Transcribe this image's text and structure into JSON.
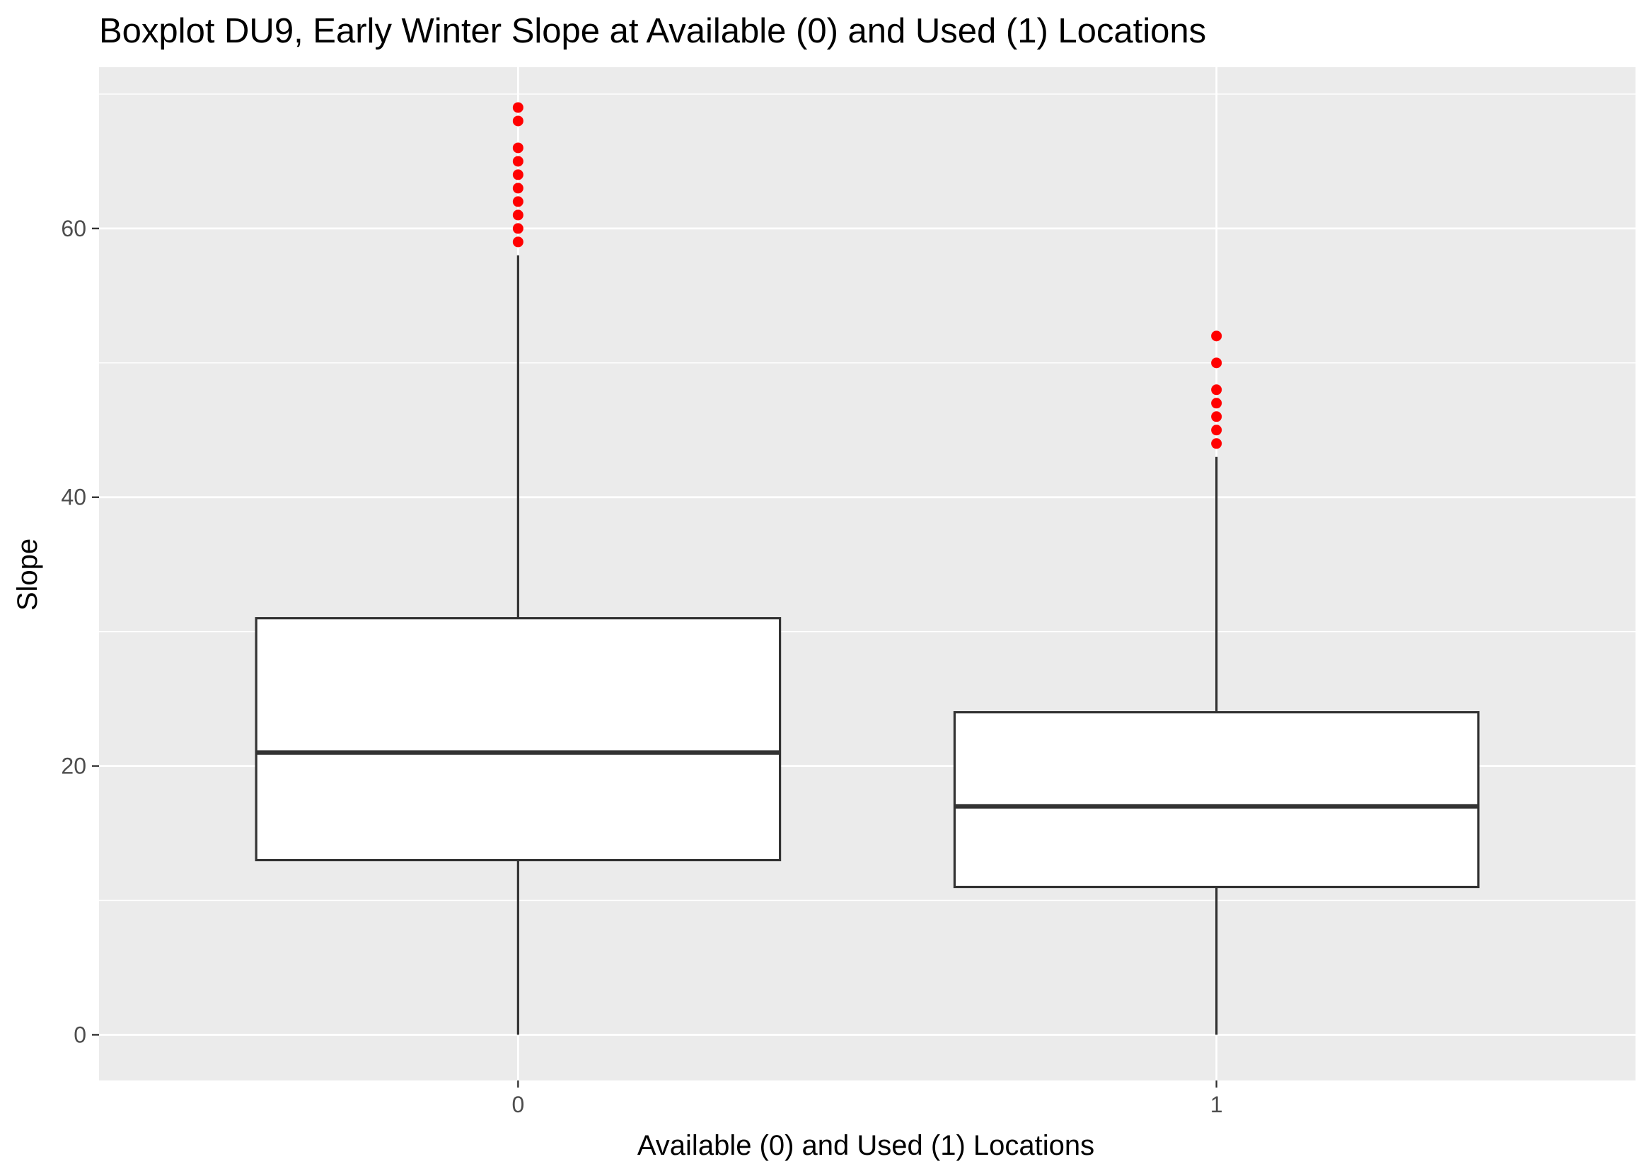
{
  "chart_data": {
    "type": "boxplot",
    "title": "Boxplot DU9, Early Winter Slope at Available (0) and Used (1) Locations",
    "xlabel": "Available (0) and Used (1) Locations",
    "ylabel": "Slope",
    "categories": [
      "0",
      "1"
    ],
    "ylim": [
      -3.4,
      72
    ],
    "y_ticks": [
      0,
      20,
      40,
      60
    ],
    "grid": true,
    "legend": "none",
    "boxes": [
      {
        "category": "0",
        "whisker_low": 0,
        "q1": 13,
        "median": 21,
        "q3": 31,
        "whisker_high": 58,
        "outliers": [
          59,
          60,
          61,
          62,
          63,
          64,
          65,
          66,
          68,
          69
        ]
      },
      {
        "category": "1",
        "whisker_low": 0,
        "q1": 11,
        "median": 17,
        "q3": 24,
        "whisker_high": 43,
        "outliers": [
          44,
          45,
          46,
          47,
          48,
          50,
          52
        ]
      }
    ],
    "colors": {
      "panel_background": "#ebebeb",
      "grid": "#ffffff",
      "box_fill": "#ffffff",
      "box_line": "#333333",
      "outlier": "#ff0000",
      "tick_text": "#4d4d4d",
      "text": "#000000"
    }
  }
}
